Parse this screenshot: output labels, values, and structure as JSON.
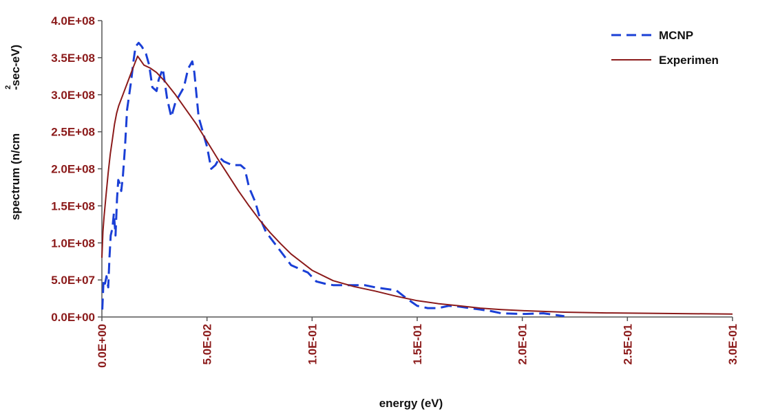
{
  "chart_data": {
    "type": "line",
    "xlabel": "energy (eV)",
    "ylabel_main": "spectrum (n/cm",
    "ylabel_sup": "2",
    "ylabel_tail": "-sec-eV)",
    "xlim": [
      0,
      0.3
    ],
    "ylim": [
      0,
      400000000
    ],
    "x_ticks": [
      0,
      0.05,
      0.1,
      0.15,
      0.2,
      0.25,
      0.3
    ],
    "x_tick_labels": [
      "0.0E+00",
      "5.0E-02",
      "1.0E-01",
      "1.5E-01",
      "2.0E-01",
      "2.5E-01",
      "3.0E-01"
    ],
    "y_ticks": [
      0,
      50000000,
      100000000,
      150000000,
      200000000,
      250000000,
      300000000,
      350000000,
      400000000
    ],
    "y_tick_labels": [
      "0.0E+00",
      "5.0E+07",
      "1.0E+08",
      "1.5E+08",
      "2.0E+08",
      "2.5E+08",
      "3.0E+08",
      "3.5E+08",
      "4.0E+08"
    ],
    "legend_position": "top-right",
    "grid": false,
    "series": [
      {
        "name": "MCNP",
        "color": "#1a3fd6",
        "style": "dashed",
        "x": [
          0.0002,
          0.0008,
          0.0015,
          0.0022,
          0.003,
          0.0036,
          0.0042,
          0.005,
          0.0057,
          0.0065,
          0.0072,
          0.0078,
          0.0085,
          0.0092,
          0.01,
          0.011,
          0.012,
          0.013,
          0.014,
          0.015,
          0.016,
          0.0175,
          0.019,
          0.021,
          0.0225,
          0.024,
          0.026,
          0.027,
          0.029,
          0.031,
          0.033,
          0.035,
          0.037,
          0.039,
          0.041,
          0.043,
          0.044,
          0.045,
          0.046,
          0.048,
          0.05,
          0.052,
          0.054,
          0.056,
          0.058,
          0.062,
          0.066,
          0.068,
          0.07,
          0.073,
          0.075,
          0.078,
          0.082,
          0.086,
          0.09,
          0.094,
          0.098,
          0.102,
          0.106,
          0.11,
          0.115,
          0.12,
          0.125,
          0.13,
          0.135,
          0.14,
          0.145,
          0.15,
          0.155,
          0.16,
          0.165,
          0.17,
          0.175,
          0.18,
          0.185,
          0.19,
          0.2,
          0.21,
          0.215,
          0.22
        ],
        "y": [
          10000000,
          50000000,
          45000000,
          55000000,
          40000000,
          80000000,
          110000000,
          120000000,
          140000000,
          110000000,
          160000000,
          185000000,
          180000000,
          170000000,
          190000000,
          230000000,
          280000000,
          300000000,
          320000000,
          345000000,
          365000000,
          370000000,
          365000000,
          355000000,
          340000000,
          310000000,
          305000000,
          320000000,
          335000000,
          295000000,
          270000000,
          290000000,
          300000000,
          310000000,
          335000000,
          345000000,
          330000000,
          300000000,
          270000000,
          250000000,
          230000000,
          200000000,
          205000000,
          215000000,
          210000000,
          205000000,
          205000000,
          200000000,
          175000000,
          155000000,
          135000000,
          115000000,
          100000000,
          85000000,
          70000000,
          65000000,
          60000000,
          48000000,
          45000000,
          43000000,
          43000000,
          43000000,
          43000000,
          40000000,
          38000000,
          36000000,
          25000000,
          15000000,
          12000000,
          12000000,
          15000000,
          14000000,
          12000000,
          10000000,
          8000000,
          5000000,
          4000000,
          5000000,
          3000000,
          1000000
        ]
      },
      {
        "name": "Experimen",
        "color": "#8b1a1a",
        "style": "solid",
        "x": [
          0,
          0.0005,
          0.001,
          0.002,
          0.003,
          0.004,
          0.005,
          0.006,
          0.007,
          0.008,
          0.01,
          0.012,
          0.014,
          0.016,
          0.017,
          0.018,
          0.02,
          0.023,
          0.026,
          0.03,
          0.035,
          0.04,
          0.045,
          0.05,
          0.055,
          0.06,
          0.065,
          0.07,
          0.075,
          0.08,
          0.085,
          0.09,
          0.1,
          0.11,
          0.12,
          0.13,
          0.14,
          0.15,
          0.16,
          0.17,
          0.18,
          0.19,
          0.2,
          0.21,
          0.22,
          0.24,
          0.26,
          0.28,
          0.3
        ],
        "y": [
          80000000,
          115000000,
          135000000,
          165000000,
          195000000,
          220000000,
          240000000,
          260000000,
          275000000,
          285000000,
          300000000,
          315000000,
          330000000,
          345000000,
          352000000,
          348000000,
          340000000,
          336000000,
          330000000,
          318000000,
          300000000,
          280000000,
          260000000,
          237000000,
          214000000,
          192000000,
          170000000,
          150000000,
          131000000,
          114000000,
          99000000,
          85000000,
          63000000,
          49000000,
          41000000,
          35000000,
          28000000,
          22000000,
          18000000,
          15000000,
          12000000,
          10000000,
          8500000,
          7500000,
          6500000,
          5500000,
          5000000,
          4500000,
          4000000
        ]
      }
    ]
  }
}
